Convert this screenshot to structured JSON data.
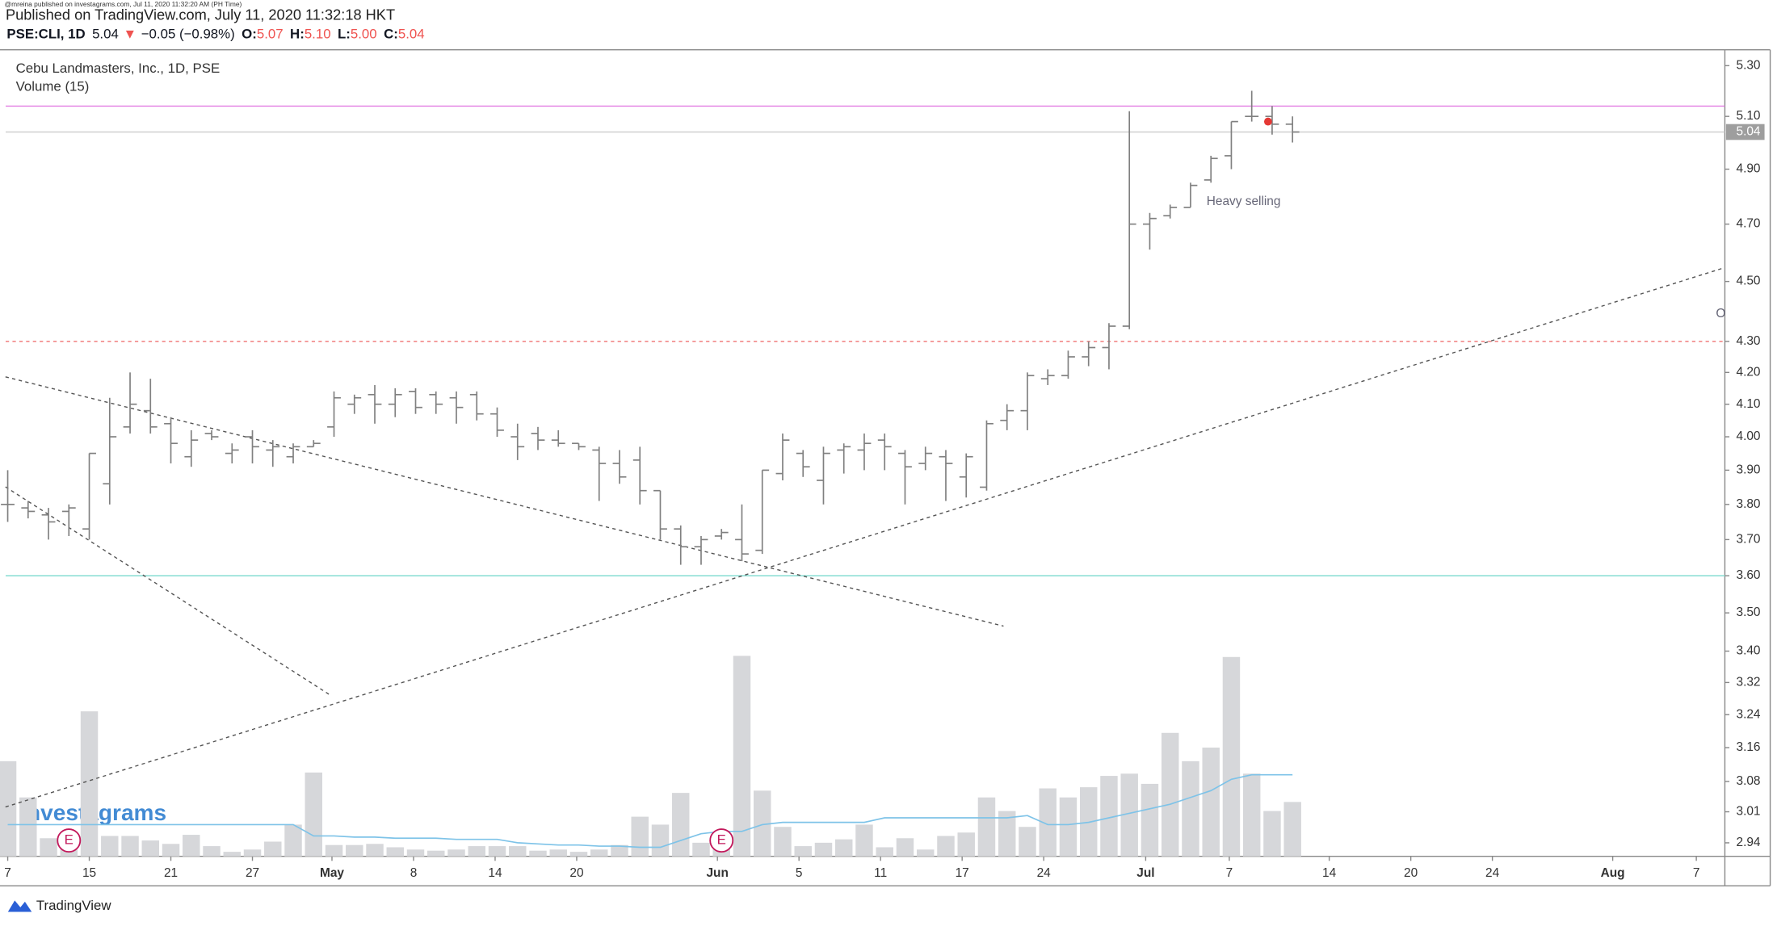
{
  "header": {
    "publisher_note": "@mreina published on investagrams.com, Jul 11, 2020 11:32:20 AM (PH Time)",
    "published": "Published on TradingView.com, July 11, 2020 11:32:18 HKT",
    "symbol": "PSE:CLI, 1D",
    "last": "5.04",
    "arrow": "▼",
    "change": "−0.05 (−0.98%)",
    "o_label": "O:",
    "o": "5.07",
    "h_label": "H:",
    "h": "5.10",
    "l_label": "L:",
    "l": "5.00",
    "c_label": "C:",
    "c": "5.04"
  },
  "chart_data": {
    "type": "ohlc",
    "title": "Cebu Landmasters, Inc., 1D, PSE",
    "volume_title": "Volume (15)",
    "log_scale": true,
    "color": "#808080",
    "volume_color": "#d6d7da",
    "ma_color": "#7ec3e8",
    "x": [
      -4,
      -3,
      -2,
      -1,
      0,
      1,
      2,
      3,
      4,
      5,
      6,
      7,
      8,
      9,
      10,
      11,
      12,
      13,
      14,
      15,
      16,
      17,
      18,
      19,
      20,
      21,
      22,
      23,
      24,
      25,
      26,
      27,
      28,
      29,
      30,
      31,
      32,
      33,
      34,
      35,
      36,
      37,
      38,
      39,
      40,
      41,
      42,
      43,
      44,
      45,
      46,
      47,
      48,
      49,
      50,
      51,
      52,
      53,
      54,
      55,
      56,
      57,
      58,
      59
    ],
    "open": [
      3.8,
      3.79,
      3.77,
      3.78,
      3.73,
      3.86,
      4.03,
      4.08,
      4.04,
      3.94,
      4.01,
      3.95,
      4.0,
      3.96,
      3.94,
      3.97,
      4.03,
      4.1,
      4.13,
      4.1,
      4.14,
      4.13,
      4.12,
      4.13,
      4.07,
      4.0,
      4.01,
      3.99,
      3.98,
      3.96,
      3.92,
      3.93,
      3.84,
      3.73,
      3.68,
      3.71,
      3.7,
      3.67,
      3.89,
      3.95,
      3.87,
      3.96,
      3.96,
      3.99,
      3.95,
      3.92,
      3.94,
      3.88,
      3.85,
      4.05,
      4.08,
      4.18,
      4.19,
      4.25,
      4.28,
      4.35,
      4.7,
      4.73,
      4.76,
      4.86,
      4.95,
      5.1,
      5.1,
      5.07
    ],
    "high": [
      3.9,
      3.81,
      3.79,
      3.8,
      3.95,
      4.12,
      4.2,
      4.18,
      4.06,
      4.02,
      4.02,
      3.98,
      4.02,
      3.99,
      3.98,
      3.99,
      4.14,
      4.13,
      4.16,
      4.15,
      4.15,
      4.14,
      4.14,
      4.14,
      4.09,
      4.04,
      4.03,
      4.02,
      3.98,
      3.97,
      3.96,
      3.97,
      3.84,
      3.74,
      3.71,
      3.73,
      3.8,
      3.9,
      4.01,
      3.96,
      3.97,
      3.98,
      4.01,
      4.01,
      3.96,
      3.97,
      3.96,
      3.95,
      4.05,
      4.1,
      4.2,
      4.21,
      4.27,
      4.3,
      4.36,
      5.12,
      4.74,
      4.77,
      4.85,
      4.95,
      5.08,
      5.2,
      5.14,
      5.1
    ],
    "low": [
      3.75,
      3.76,
      3.7,
      3.71,
      3.7,
      3.8,
      4.01,
      4.01,
      3.92,
      3.91,
      3.99,
      3.92,
      3.92,
      3.91,
      3.92,
      3.97,
      4.0,
      4.07,
      4.04,
      4.06,
      4.07,
      4.07,
      4.04,
      4.05,
      4.0,
      3.93,
      3.96,
      3.97,
      3.96,
      3.81,
      3.86,
      3.8,
      3.7,
      3.63,
      3.63,
      3.7,
      3.64,
      3.66,
      3.87,
      3.88,
      3.8,
      3.89,
      3.9,
      3.9,
      3.8,
      3.9,
      3.81,
      3.82,
      3.84,
      4.02,
      4.02,
      4.16,
      4.18,
      4.22,
      4.21,
      4.34,
      4.61,
      4.72,
      4.76,
      4.85,
      4.9,
      5.08,
      5.03,
      5.0
    ],
    "close": [
      3.8,
      3.78,
      3.75,
      3.79,
      3.95,
      4.0,
      4.1,
      4.03,
      3.98,
      3.99,
      4.0,
      3.96,
      3.97,
      3.97,
      3.97,
      3.98,
      4.12,
      4.12,
      4.1,
      4.13,
      4.09,
      4.1,
      4.09,
      4.07,
      4.02,
      3.97,
      3.99,
      3.98,
      3.97,
      3.92,
      3.88,
      3.84,
      3.73,
      3.68,
      3.7,
      3.72,
      3.66,
      3.9,
      3.99,
      3.91,
      3.95,
      3.97,
      3.98,
      3.97,
      3.91,
      3.95,
      3.92,
      3.94,
      4.04,
      4.08,
      4.19,
      4.19,
      4.25,
      4.28,
      4.35,
      4.7,
      4.72,
      4.76,
      4.84,
      4.94,
      5.08,
      5.1,
      5.07,
      5.04
    ],
    "volume": [
      84,
      52,
      16,
      18,
      128,
      18,
      18,
      14,
      11,
      19,
      9,
      4,
      6,
      13,
      28,
      74,
      10,
      10,
      11,
      8,
      6,
      5,
      6,
      9,
      9,
      9,
      5,
      6,
      4,
      6,
      10,
      35,
      28,
      56,
      12,
      14,
      177,
      58,
      26,
      9,
      12,
      15,
      28,
      8,
      16,
      6,
      18,
      21,
      52,
      40,
      26,
      60,
      52,
      61,
      71,
      73,
      64,
      109,
      84,
      96,
      176,
      73,
      40,
      48
    ],
    "volume_ma": [
      28,
      28,
      28,
      28,
      28,
      28,
      28,
      28,
      28,
      28,
      28,
      28,
      28,
      28,
      28,
      18,
      18,
      17,
      17,
      16,
      16,
      16,
      15,
      15,
      15,
      12,
      11,
      10,
      10,
      9,
      9,
      8,
      8,
      14,
      20,
      22,
      22,
      28,
      30,
      30,
      30,
      30,
      30,
      34,
      34,
      34,
      34,
      34,
      34,
      34,
      36,
      28,
      28,
      30,
      34,
      38,
      42,
      46,
      52,
      58,
      68,
      72,
      72,
      72
    ],
    "vlim": [
      0,
      712
    ],
    "xlim": [
      -4.1,
      80.2
    ],
    "xticks": [
      {
        "value": -4,
        "label": "7"
      },
      {
        "value": 0,
        "label": "15"
      },
      {
        "value": 4,
        "label": "21"
      },
      {
        "value": 8,
        "label": "27"
      },
      {
        "value": 11.9,
        "label": "May"
      },
      {
        "value": 15.9,
        "label": "8"
      },
      {
        "value": 19.9,
        "label": "14"
      },
      {
        "value": 23.9,
        "label": "20"
      },
      {
        "value": 30.8,
        "label": "Jun"
      },
      {
        "value": 34.8,
        "label": "5"
      },
      {
        "value": 38.8,
        "label": "11"
      },
      {
        "value": 42.8,
        "label": "17"
      },
      {
        "value": 46.8,
        "label": "24"
      },
      {
        "value": 51.8,
        "label": "Jul"
      },
      {
        "value": 55.9,
        "label": "7"
      },
      {
        "value": 60.8,
        "label": "14"
      },
      {
        "value": 64.8,
        "label": "20"
      },
      {
        "value": 68.8,
        "label": "24"
      },
      {
        "value": 74.7,
        "label": "Aug"
      },
      {
        "value": 78.8,
        "label": "7"
      }
    ],
    "ylim": [
      2.91,
      5.364
    ],
    "yticks": [
      {
        "value": 5.3,
        "label": "5.30"
      },
      {
        "value": 5.1,
        "label": "5.10"
      },
      {
        "value": 4.9,
        "label": "4.90"
      },
      {
        "value": 4.7,
        "label": "4.70"
      },
      {
        "value": 4.5,
        "label": "4.50"
      },
      {
        "value": 4.3,
        "label": "4.30"
      },
      {
        "value": 4.2,
        "label": "4.20"
      },
      {
        "value": 4.1,
        "label": "4.10"
      },
      {
        "value": 4,
        "label": "4.00"
      },
      {
        "value": 3.9,
        "label": "3.90"
      },
      {
        "value": 3.8,
        "label": "3.80"
      },
      {
        "value": 3.7,
        "label": "3.70"
      },
      {
        "value": 3.6,
        "label": "3.60"
      },
      {
        "value": 3.5,
        "label": "3.50"
      },
      {
        "value": 3.4,
        "label": "3.40"
      },
      {
        "value": 3.32,
        "label": "3.32"
      },
      {
        "value": 3.24,
        "label": "3.24"
      },
      {
        "value": 3.16,
        "label": "3.16"
      },
      {
        "value": 3.08,
        "label": "3.08"
      },
      {
        "value": 3.01,
        "label": "3.01"
      },
      {
        "value": 2.94,
        "label": "2.94"
      }
    ],
    "last_price": 5.04,
    "last_price_label": "5.04",
    "hlines": [
      {
        "value": 5.14,
        "color": "#e27ee2",
        "style": "solid"
      },
      {
        "value": 5.04,
        "color": "#cfcfcf",
        "style": "solid"
      },
      {
        "value": 4.3,
        "color": "#ef7070",
        "style": "dashed"
      },
      {
        "value": 3.6,
        "color": "#86ddd2",
        "style": "solid"
      }
    ],
    "trendlines": [
      {
        "x": [
          -4.11,
          44.83
        ],
        "y": [
          4.186,
          3.465
        ],
        "color": "#555555"
      },
      {
        "x": [
          -4.11,
          11.83
        ],
        "y": [
          3.851,
          3.288
        ],
        "color": "#555555"
      },
      {
        "x": [
          -4.11,
          80.17
        ],
        "y": [
          3.021,
          4.547
        ],
        "color": "#555555"
      }
    ],
    "events": [
      {
        "x": -1,
        "label": "E"
      },
      {
        "x": 31,
        "label": "E"
      }
    ],
    "annotations": [
      {
        "text": "Heavy selling",
        "x": 56.6,
        "y": 4.78
      },
      {
        "text": "O",
        "x": 80,
        "y": 4.39
      }
    ],
    "marker": {
      "x": 57.8,
      "y": 5.08,
      "color": "#e53935"
    }
  },
  "watermark": "investagrams",
  "footer": "TradingView"
}
